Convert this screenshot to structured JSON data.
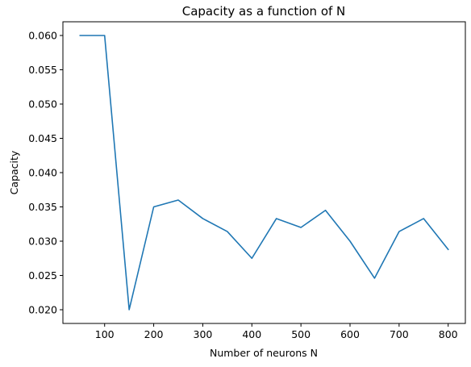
{
  "chart_data": {
    "type": "line",
    "title": "Capacity as a function of N",
    "xlabel": "Number of neurons N",
    "ylabel": "Capacity",
    "xlim": [
      15,
      835
    ],
    "ylim": [
      0.018,
      0.062
    ],
    "x_ticks": [
      100,
      200,
      300,
      400,
      500,
      600,
      700,
      800
    ],
    "x_tick_labels": [
      "100",
      "200",
      "300",
      "400",
      "500",
      "600",
      "700",
      "800"
    ],
    "y_ticks": [
      0.02,
      0.025,
      0.03,
      0.035,
      0.04,
      0.045,
      0.05,
      0.055,
      0.06
    ],
    "y_tick_labels": [
      "0.020",
      "0.025",
      "0.030",
      "0.035",
      "0.040",
      "0.045",
      "0.050",
      "0.055",
      "0.060"
    ],
    "grid": false,
    "series": [
      {
        "color": "#1f77b4",
        "x": [
          50,
          100,
          150,
          200,
          250,
          300,
          350,
          400,
          450,
          500,
          550,
          600,
          650,
          700,
          750,
          800
        ],
        "y": [
          0.06,
          0.06,
          0.02,
          0.035,
          0.036,
          0.0333,
          0.0314,
          0.0275,
          0.0333,
          0.032,
          0.0345,
          0.03,
          0.0246,
          0.0314,
          0.0333,
          0.0288
        ]
      }
    ]
  }
}
